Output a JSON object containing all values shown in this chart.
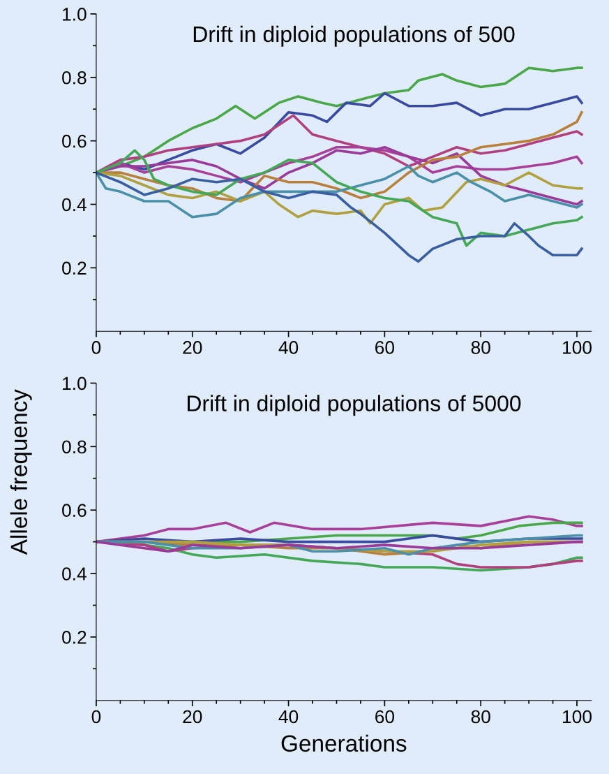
{
  "chart_data": [
    {
      "type": "line",
      "title": "Drift in diploid populations of 500",
      "xlim": [
        0,
        103
      ],
      "ylim": [
        0,
        1.0
      ],
      "xticks": [
        0,
        {
          "value": 5,
          "label": null
        },
        {
          "value": 10,
          "label": null
        },
        {
          "value": 15,
          "label": null
        },
        20,
        {
          "value": 25,
          "label": null
        },
        {
          "value": 30,
          "label": null
        },
        {
          "value": 35,
          "label": null
        },
        40,
        {
          "value": 45,
          "label": null
        },
        {
          "value": 50,
          "label": null
        },
        {
          "value": 55,
          "label": null
        },
        60,
        {
          "value": 65,
          "label": null
        },
        {
          "value": 70,
          "label": null
        },
        {
          "value": 75,
          "label": null
        },
        80,
        {
          "value": 85,
          "label": null
        },
        {
          "value": 90,
          "label": null
        },
        {
          "value": 95,
          "label": null
        },
        100
      ],
      "yticks": [
        {
          "value": 0.1,
          "label": null
        },
        0.2,
        {
          "value": 0.3,
          "label": null
        },
        0.4,
        {
          "value": 0.5,
          "label": null
        },
        0.6,
        {
          "value": 0.7,
          "label": null
        },
        0.8,
        {
          "value": 0.9,
          "label": null
        },
        {
          "value": 1.0,
          "label": "1.0"
        }
      ],
      "grid": false,
      "marker": "none",
      "line_style": "solid",
      "series": [
        {
          "color": "#4aa84a",
          "x": [
            0,
            5,
            10,
            15,
            20,
            25,
            29,
            33,
            38,
            42,
            47,
            50,
            55,
            60,
            65,
            67,
            72,
            75,
            80,
            85,
            90,
            95,
            100,
            101
          ],
          "values": [
            0.5,
            0.52,
            0.55,
            0.6,
            0.64,
            0.67,
            0.71,
            0.67,
            0.72,
            0.74,
            0.72,
            0.71,
            0.73,
            0.75,
            0.76,
            0.79,
            0.81,
            0.79,
            0.77,
            0.78,
            0.83,
            0.82,
            0.83,
            0.83
          ]
        },
        {
          "color": "#3a4aa0",
          "x": [
            0,
            5,
            10,
            15,
            20,
            25,
            30,
            35,
            40,
            45,
            48,
            52,
            57,
            60,
            65,
            70,
            75,
            80,
            85,
            90,
            95,
            100,
            101
          ],
          "values": [
            0.5,
            0.53,
            0.51,
            0.54,
            0.57,
            0.59,
            0.56,
            0.61,
            0.69,
            0.68,
            0.66,
            0.72,
            0.71,
            0.75,
            0.71,
            0.71,
            0.72,
            0.68,
            0.7,
            0.7,
            0.72,
            0.74,
            0.72
          ]
        },
        {
          "color": "#b0407f",
          "x": [
            0,
            5,
            10,
            15,
            20,
            25,
            30,
            35,
            41,
            45,
            50,
            55,
            60,
            65,
            70,
            75,
            80,
            85,
            90,
            95,
            100,
            101
          ],
          "values": [
            0.5,
            0.54,
            0.55,
            0.57,
            0.58,
            0.59,
            0.6,
            0.62,
            0.68,
            0.62,
            0.6,
            0.58,
            0.56,
            0.52,
            0.55,
            0.58,
            0.56,
            0.57,
            0.59,
            0.61,
            0.63,
            0.62
          ]
        },
        {
          "color": "#a8409a",
          "x": [
            0,
            5,
            10,
            15,
            20,
            25,
            30,
            35,
            40,
            45,
            50,
            55,
            60,
            65,
            70,
            75,
            80,
            85,
            90,
            95,
            100,
            101
          ],
          "values": [
            0.5,
            0.53,
            0.5,
            0.52,
            0.51,
            0.49,
            0.47,
            0.5,
            0.53,
            0.55,
            0.58,
            0.58,
            0.57,
            0.55,
            0.5,
            0.52,
            0.51,
            0.51,
            0.52,
            0.53,
            0.55,
            0.53
          ]
        },
        {
          "color": "#9a3a9a",
          "x": [
            0,
            5,
            10,
            15,
            20,
            25,
            30,
            35,
            40,
            45,
            50,
            55,
            60,
            65,
            70,
            75,
            80,
            85,
            90,
            95,
            100,
            101
          ],
          "values": [
            0.5,
            0.52,
            0.52,
            0.53,
            0.54,
            0.52,
            0.48,
            0.45,
            0.5,
            0.53,
            0.57,
            0.56,
            0.58,
            0.55,
            0.53,
            0.56,
            0.49,
            0.46,
            0.44,
            0.42,
            0.4,
            0.41
          ]
        },
        {
          "color": "#b8803c",
          "x": [
            0,
            5,
            10,
            15,
            20,
            25,
            30,
            35,
            40,
            45,
            50,
            55,
            60,
            65,
            70,
            75,
            80,
            85,
            90,
            95,
            100,
            101
          ],
          "values": [
            0.5,
            0.5,
            0.48,
            0.46,
            0.45,
            0.42,
            0.41,
            0.49,
            0.47,
            0.47,
            0.45,
            0.42,
            0.44,
            0.5,
            0.54,
            0.55,
            0.58,
            0.59,
            0.6,
            0.62,
            0.66,
            0.69
          ]
        },
        {
          "color": "#b0a040",
          "x": [
            0,
            5,
            10,
            15,
            20,
            25,
            30,
            35,
            38,
            42,
            45,
            50,
            55,
            57,
            60,
            65,
            68,
            72,
            77,
            80,
            85,
            90,
            95,
            100,
            101
          ],
          "values": [
            0.5,
            0.49,
            0.46,
            0.43,
            0.42,
            0.44,
            0.41,
            0.44,
            0.4,
            0.36,
            0.38,
            0.37,
            0.38,
            0.34,
            0.4,
            0.42,
            0.38,
            0.39,
            0.47,
            0.48,
            0.46,
            0.5,
            0.46,
            0.45,
            0.45
          ]
        },
        {
          "color": "#4a90a8",
          "x": [
            0,
            2,
            5,
            10,
            15,
            20,
            25,
            30,
            35,
            40,
            45,
            50,
            55,
            60,
            65,
            67,
            70,
            75,
            78,
            82,
            85,
            90,
            95,
            100,
            101
          ],
          "values": [
            0.5,
            0.45,
            0.44,
            0.41,
            0.41,
            0.36,
            0.37,
            0.42,
            0.44,
            0.44,
            0.44,
            0.44,
            0.46,
            0.48,
            0.52,
            0.49,
            0.47,
            0.5,
            0.47,
            0.44,
            0.41,
            0.43,
            0.41,
            0.39,
            0.4
          ]
        },
        {
          "color": "#44a858",
          "x": [
            0,
            5,
            8,
            10,
            12,
            15,
            20,
            25,
            30,
            35,
            40,
            45,
            50,
            55,
            60,
            65,
            70,
            75,
            77,
            80,
            85,
            90,
            95,
            100,
            101
          ],
          "values": [
            0.5,
            0.53,
            0.57,
            0.54,
            0.48,
            0.46,
            0.44,
            0.43,
            0.48,
            0.5,
            0.54,
            0.53,
            0.47,
            0.44,
            0.42,
            0.41,
            0.36,
            0.34,
            0.27,
            0.31,
            0.3,
            0.32,
            0.34,
            0.35,
            0.36
          ]
        },
        {
          "color": "#3a5fa0",
          "x": [
            0,
            5,
            10,
            15,
            20,
            25,
            30,
            35,
            40,
            45,
            50,
            53,
            55,
            60,
            65,
            67,
            70,
            75,
            80,
            85,
            87,
            90,
            92,
            95,
            100,
            101
          ],
          "values": [
            0.5,
            0.47,
            0.43,
            0.45,
            0.48,
            0.47,
            0.48,
            0.44,
            0.42,
            0.44,
            0.43,
            0.39,
            0.37,
            0.31,
            0.24,
            0.22,
            0.26,
            0.29,
            0.3,
            0.3,
            0.34,
            0.3,
            0.27,
            0.24,
            0.24,
            0.26
          ]
        }
      ]
    },
    {
      "type": "line",
      "title": "Drift in diploid populations of 5000",
      "xlabel": "Generations",
      "ylabel": "Allele frequency",
      "xlim": [
        0,
        103
      ],
      "ylim": [
        0,
        1.0
      ],
      "xticks": [
        0,
        {
          "value": 5,
          "label": null
        },
        {
          "value": 10,
          "label": null
        },
        {
          "value": 15,
          "label": null
        },
        20,
        {
          "value": 25,
          "label": null
        },
        {
          "value": 30,
          "label": null
        },
        {
          "value": 35,
          "label": null
        },
        40,
        {
          "value": 45,
          "label": null
        },
        {
          "value": 50,
          "label": null
        },
        {
          "value": 55,
          "label": null
        },
        60,
        {
          "value": 65,
          "label": null
        },
        {
          "value": 70,
          "label": null
        },
        {
          "value": 75,
          "label": null
        },
        80,
        {
          "value": 85,
          "label": null
        },
        {
          "value": 90,
          "label": null
        },
        {
          "value": 95,
          "label": null
        },
        100
      ],
      "yticks": [
        {
          "value": 0.1,
          "label": null
        },
        0.2,
        {
          "value": 0.3,
          "label": null
        },
        0.4,
        {
          "value": 0.5,
          "label": null
        },
        0.6,
        {
          "value": 0.7,
          "label": null
        },
        0.8,
        {
          "value": 0.9,
          "label": null
        },
        {
          "value": 1.0,
          "label": "1.0"
        }
      ],
      "grid": false,
      "marker": "none",
      "line_style": "solid",
      "series": [
        {
          "color": "#a8409a",
          "x": [
            0,
            10,
            15,
            20,
            27,
            32,
            37,
            45,
            55,
            70,
            80,
            90,
            95,
            100,
            101
          ],
          "values": [
            0.5,
            0.52,
            0.54,
            0.54,
            0.56,
            0.53,
            0.56,
            0.54,
            0.54,
            0.56,
            0.55,
            0.58,
            0.57,
            0.55,
            0.55
          ]
        },
        {
          "color": "#4aa84a",
          "x": [
            0,
            10,
            20,
            30,
            40,
            50,
            60,
            70,
            75,
            80,
            88,
            95,
            100,
            101
          ],
          "values": [
            0.5,
            0.5,
            0.5,
            0.5,
            0.51,
            0.52,
            0.52,
            0.52,
            0.51,
            0.52,
            0.55,
            0.56,
            0.56,
            0.56
          ]
        },
        {
          "color": "#44a858",
          "x": [
            0,
            10,
            15,
            20,
            25,
            35,
            45,
            55,
            60,
            70,
            80,
            90,
            95,
            100,
            101
          ],
          "values": [
            0.5,
            0.49,
            0.48,
            0.46,
            0.45,
            0.46,
            0.44,
            0.43,
            0.42,
            0.42,
            0.41,
            0.42,
            0.43,
            0.45,
            0.45
          ]
        },
        {
          "color": "#b0407f",
          "x": [
            0,
            10,
            15,
            20,
            30,
            40,
            50,
            60,
            70,
            75,
            80,
            90,
            100,
            101
          ],
          "values": [
            0.5,
            0.49,
            0.47,
            0.48,
            0.49,
            0.49,
            0.48,
            0.47,
            0.46,
            0.43,
            0.42,
            0.42,
            0.44,
            0.44
          ]
        },
        {
          "color": "#3a4aa0",
          "x": [
            0,
            10,
            20,
            30,
            40,
            50,
            60,
            65,
            70,
            80,
            90,
            100,
            101
          ],
          "values": [
            0.5,
            0.51,
            0.5,
            0.51,
            0.5,
            0.5,
            0.5,
            0.51,
            0.52,
            0.5,
            0.51,
            0.51,
            0.51
          ]
        },
        {
          "color": "#b8803c",
          "x": [
            0,
            10,
            20,
            30,
            40,
            50,
            60,
            70,
            75,
            80,
            90,
            100,
            101
          ],
          "values": [
            0.5,
            0.5,
            0.49,
            0.49,
            0.48,
            0.48,
            0.46,
            0.47,
            0.49,
            0.48,
            0.5,
            0.5,
            0.5
          ]
        },
        {
          "color": "#b0a040",
          "x": [
            0,
            10,
            20,
            30,
            40,
            50,
            60,
            70,
            80,
            90,
            100,
            101
          ],
          "values": [
            0.5,
            0.5,
            0.5,
            0.49,
            0.49,
            0.48,
            0.47,
            0.47,
            0.49,
            0.5,
            0.5,
            0.5
          ]
        },
        {
          "color": "#4a90a8",
          "x": [
            0,
            10,
            20,
            30,
            40,
            45,
            50,
            60,
            65,
            70,
            80,
            90,
            100,
            101
          ],
          "values": [
            0.5,
            0.5,
            0.48,
            0.48,
            0.49,
            0.47,
            0.47,
            0.48,
            0.46,
            0.48,
            0.5,
            0.51,
            0.52,
            0.52
          ]
        },
        {
          "color": "#9a3a9a",
          "x": [
            0,
            10,
            15,
            20,
            30,
            40,
            50,
            60,
            70,
            80,
            90,
            100,
            101
          ],
          "values": [
            0.5,
            0.48,
            0.47,
            0.49,
            0.48,
            0.49,
            0.48,
            0.49,
            0.48,
            0.48,
            0.49,
            0.5,
            0.5
          ]
        }
      ]
    }
  ]
}
